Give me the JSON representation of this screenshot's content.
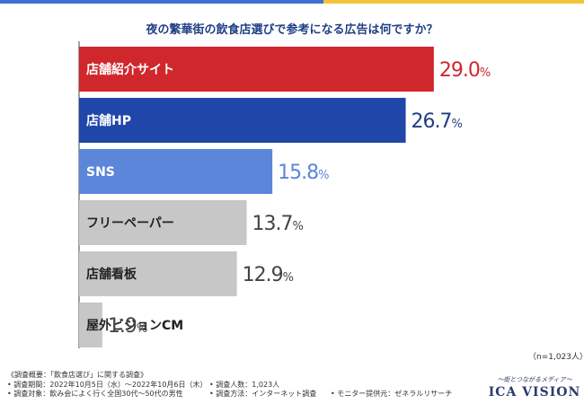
{
  "chart_data": {
    "type": "bar",
    "orientation": "horizontal",
    "title": "夜の繁華街の飲食店選びで参考になる広告は何ですか？",
    "categories": [
      "店舗紹介サイト",
      "店舗HP",
      "SNS",
      "フリーペーパー",
      "店舗看板",
      "屋外ビジョンCM"
    ],
    "values": [
      29.0,
      26.7,
      15.8,
      13.7,
      12.9,
      1.9
    ],
    "value_labels": [
      {
        "main": "29.0",
        "suffix": "%"
      },
      {
        "main": "26.7",
        "suffix": "%"
      },
      {
        "main": "15.8",
        "suffix": "%"
      },
      {
        "main": "13.7",
        "suffix": "%"
      },
      {
        "main": "12.9",
        "suffix": "%"
      },
      {
        "main": "1.9",
        "suffix": "%"
      }
    ],
    "colors": [
      "#d0272c",
      "#1f46a8",
      "#5b86d9",
      "#c7c7c7",
      "#c7c7c7",
      "#c7c7c7"
    ],
    "label_colors_inside": [
      "#ffffff",
      "#ffffff",
      "#ffffff",
      "#222222",
      "#222222",
      "#222222"
    ],
    "value_colors": [
      "#d0272c",
      "#1f3f86",
      "#5b86d9",
      "#444444",
      "#444444",
      "#444444"
    ],
    "xlim": [
      0,
      31.8
    ],
    "xlabel": "",
    "ylabel": "",
    "grid": false,
    "sample_note": "（n=1,023人）"
  },
  "footer": {
    "survey_title": "《調査概要：「飲食店選び」に関する調査》",
    "period": "• 調査期間：2022年10月5日（水）〜2022年10月6日（木）",
    "respondents": "• 調査人数：1,023人",
    "target": "• 調査対象：飲み会によく行く全国30代〜50代の男性",
    "method": "• 調査方法：インターネット調査",
    "monitor": "• モニター提供元：ゼネラルリサーチ"
  },
  "logo": {
    "tagline": "〜街とつながるメディア〜",
    "name": "ICA VISION"
  },
  "colors": {
    "accent_blue": "#3f6fcf",
    "accent_yellow": "#f3c33c",
    "title_color": "#1f3f86"
  }
}
